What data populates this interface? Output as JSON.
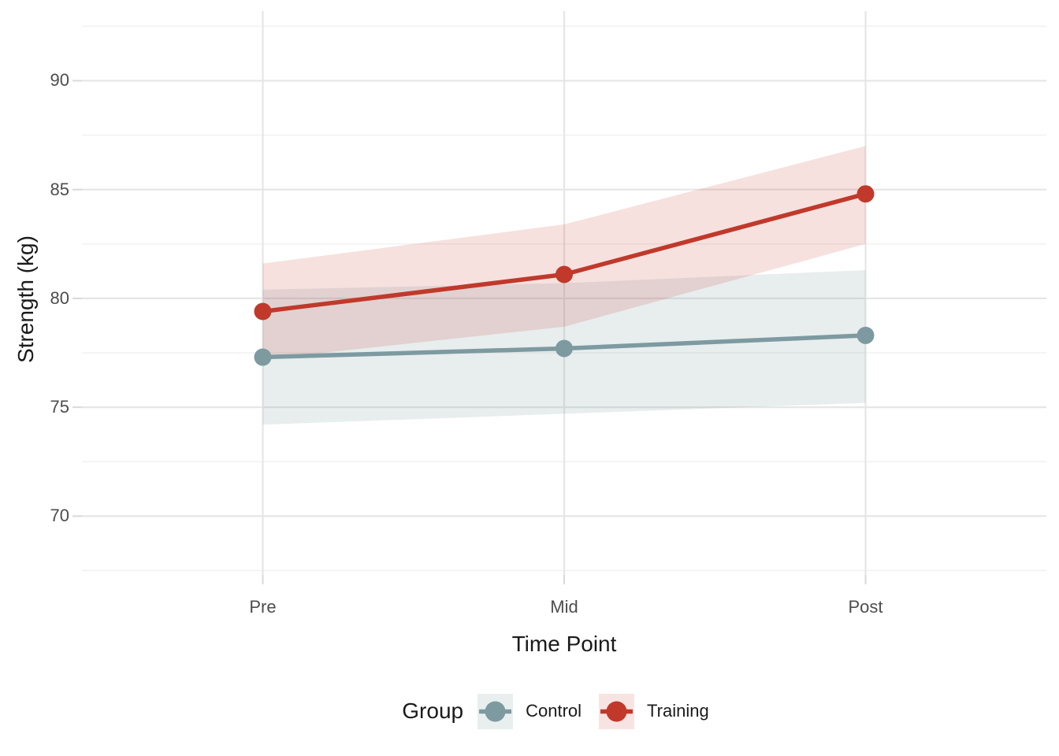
{
  "figure": {
    "background": "#ffffff"
  },
  "chart_data": {
    "type": "line",
    "title": "",
    "categories": [
      "Pre",
      "Mid",
      "Post"
    ],
    "x_axis": {
      "label": "Time Point"
    },
    "y_axis": {
      "label": "Strength (kg)",
      "ticks": [
        70,
        75,
        80,
        85,
        90
      ],
      "minor_ticks": [
        67.5,
        72.5,
        77.5,
        82.5,
        87.5,
        92.5
      ],
      "range": [
        67.3,
        93.2
      ]
    },
    "series": [
      {
        "name": "Control",
        "color": "#7D9AA1",
        "ribbon_opacity": 0.18,
        "key_background": "#e9efee",
        "values": [
          77.3,
          77.7,
          78.3
        ],
        "ci_lower": [
          74.2,
          74.7,
          75.2
        ],
        "ci_upper": [
          80.4,
          80.7,
          81.3
        ]
      },
      {
        "name": "Training",
        "color": "#C0392B",
        "ribbon_opacity": 0.15,
        "key_background": "#f8e3e3",
        "values": [
          79.4,
          81.1,
          84.8
        ],
        "ci_lower": [
          77.2,
          78.7,
          82.5
        ],
        "ci_upper": [
          81.6,
          83.4,
          87.0
        ]
      }
    ],
    "legend": {
      "title": "Group",
      "position": "bottom"
    },
    "grid": {
      "major_color": "#e6e6e6",
      "minor_color": "#f2f2f2",
      "tick_color": "#d9d9d9"
    },
    "text_colors": {
      "tick_label": "#4d4d4d",
      "axis_title": "#1a1a1a"
    }
  }
}
